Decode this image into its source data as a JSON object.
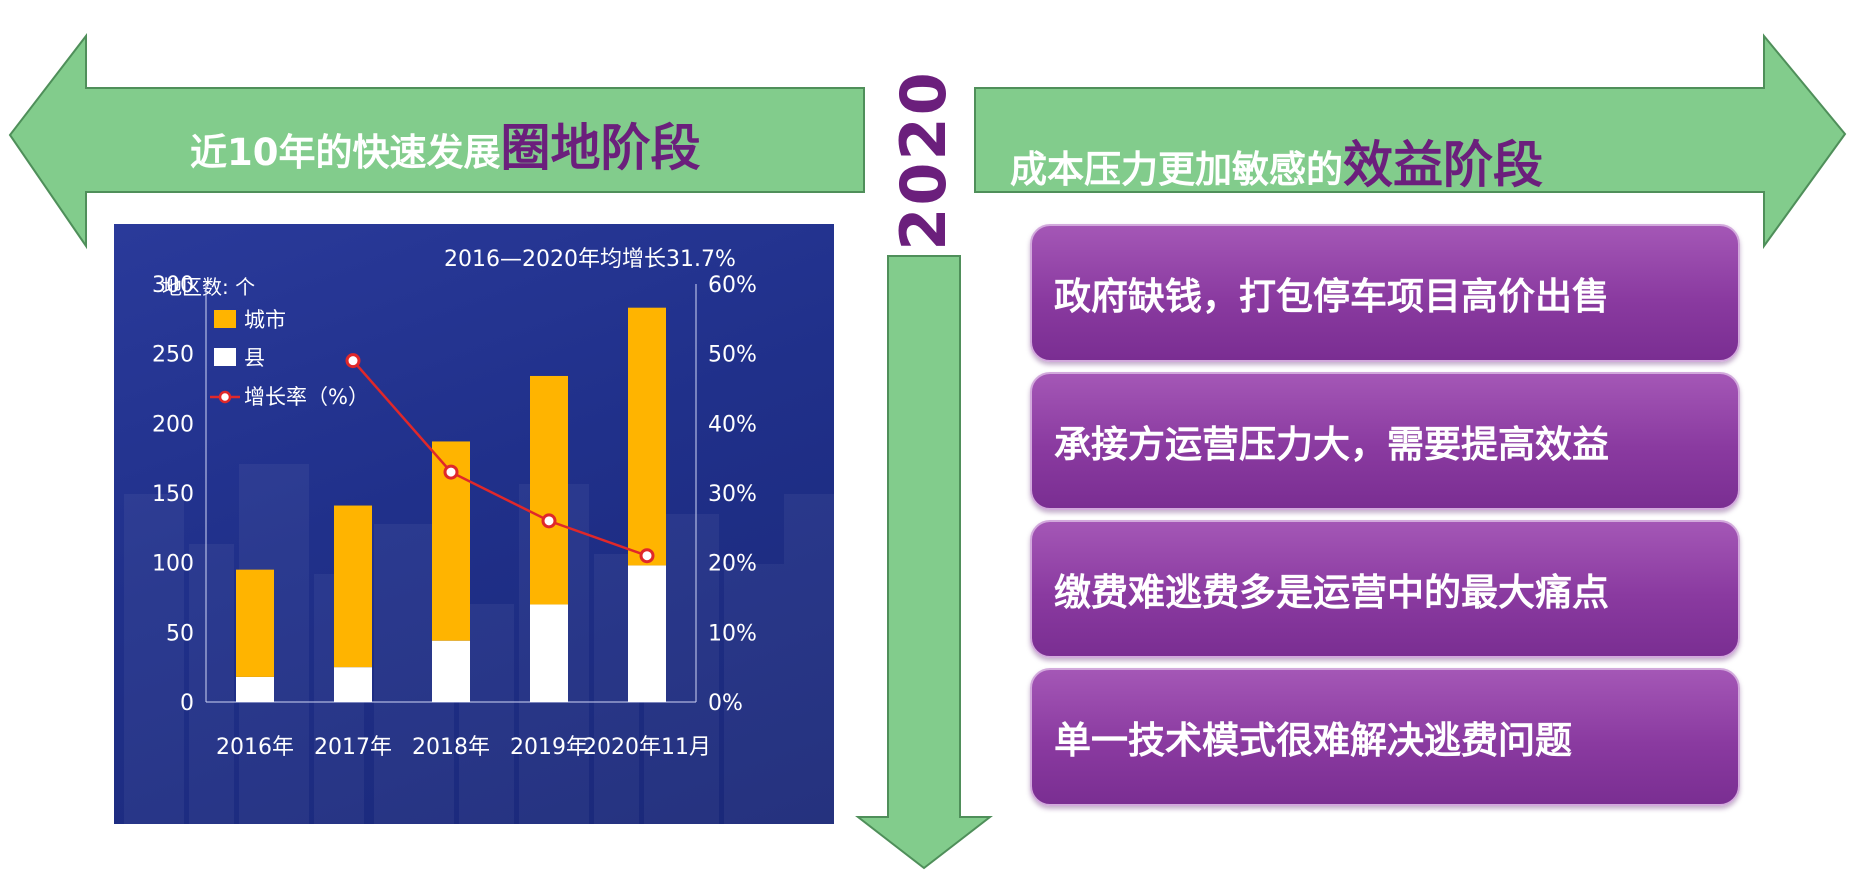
{
  "left_banner": {
    "text": "近10年的快速发展",
    "accent": "圈地阶段"
  },
  "right_banner": {
    "text": "成本压力更加敏感的",
    "accent": "效益阶段"
  },
  "year": "2020",
  "colors": {
    "arrow_fill": "#82cc8c",
    "arrow_stroke": "#4f8f5a",
    "accent_purple": "#6b1f7c",
    "card_purple": "#8a3aa0",
    "bar_city": "#ffb400",
    "bar_county": "#ffffff",
    "growth_line": "#e0282a"
  },
  "cards": [
    "政府缺钱，打包停车项目高价出售",
    "承接方运营压力大，需要提高效益",
    "缴费难逃费多是运营中的最大痛点",
    "单一技术模式很难解决逃费问题"
  ],
  "chart_data": {
    "type": "bar",
    "title": "2016—2020年均增长31.7%",
    "ylabel": "地区数: 个",
    "categories": [
      "2016年",
      "2017年",
      "2018年",
      "2019年",
      "2020年11月"
    ],
    "stacked": true,
    "ylim": [
      0,
      300
    ],
    "yticks": [
      "0",
      "50",
      "100",
      "150",
      "200",
      "250",
      "300"
    ],
    "y2lim": [
      0,
      60
    ],
    "y2ticks": [
      "0%",
      "10%",
      "20%",
      "30%",
      "40%",
      "50%",
      "60%"
    ],
    "series": [
      {
        "name": "县",
        "type": "bar",
        "values": [
          18,
          25,
          44,
          70,
          98
        ]
      },
      {
        "name": "城市",
        "type": "bar",
        "values": [
          77,
          116,
          143,
          164,
          185
        ]
      },
      {
        "name": "增长率（%）",
        "type": "line",
        "axis": "right",
        "values": [
          null,
          49,
          33,
          26,
          21
        ]
      }
    ],
    "legend": [
      "城市",
      "县",
      "增长率（%）"
    ],
    "legend_position": "top-left",
    "grid": false
  }
}
